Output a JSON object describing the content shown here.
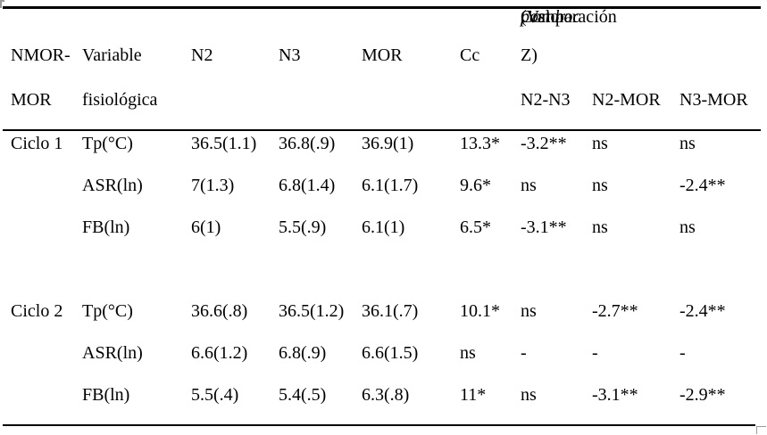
{
  "colors": {
    "text": "#000000",
    "background": "#ffffff",
    "rule": "#000000",
    "handle": "#9a9a9a"
  },
  "table": {
    "header": {
      "group_title_prefix": "Comparación ",
      "group_title_italic": "post hoc",
      "group_title_suffix": " (Valor",
      "group_title_cont": "Z)",
      "col1_line1": "NMOR-",
      "col1_line2": "MOR",
      "col2_line1": "Variable",
      "col2_line2": "fisiológica",
      "col_n2": "N2",
      "col_n3": "N3",
      "col_mor": "MOR",
      "col_cc": "Cc",
      "sub_n2_n3": "N2-N3",
      "sub_n2_mor": "N2-MOR",
      "sub_n3_mor": "N3-MOR"
    },
    "rows": [
      {
        "cycle": "Ciclo 1",
        "variable": "Tp(°C)",
        "n2": "36.5(1.1)",
        "n3": "36.8(.9)",
        "mor": "36.9(1)",
        "cc": "13.3*",
        "n2_n3": "-3.2**",
        "n2_mor": "ns",
        "n3_mor": "ns"
      },
      {
        "cycle": "",
        "variable": "ASR(ln)",
        "n2": "7(1.3)",
        "n3": "6.8(1.4)",
        "mor": "6.1(1.7)",
        "cc": "9.6*",
        "n2_n3": "ns",
        "n2_mor": "ns",
        "n3_mor": "-2.4**"
      },
      {
        "cycle": "",
        "variable": "FB(ln)",
        "n2": "6(1)",
        "n3": "5.5(.9)",
        "mor": "6.1(1)",
        "cc": "6.5*",
        "n2_n3": "-3.1**",
        "n2_mor": "ns",
        "n3_mor": "ns"
      },
      {
        "cycle": "Ciclo 2",
        "variable": "Tp(°C)",
        "n2": "36.6(.8)",
        "n3": "36.5(1.2)",
        "mor": "36.1(.7)",
        "cc": "10.1*",
        "n2_n3": "ns",
        "n2_mor": "-2.7**",
        "n3_mor": "-2.4**"
      },
      {
        "cycle": "",
        "variable": "ASR(ln)",
        "n2": "6.6(1.2)",
        "n3": "6.8(.9)",
        "mor": "6.6(1.5)",
        "cc": "ns",
        "n2_n3": "-",
        "n2_mor": "-",
        "n3_mor": "-"
      },
      {
        "cycle": "",
        "variable": "FB(ln)",
        "n2": "5.5(.4)",
        "n3": "5.4(.5)",
        "mor": "6.3(.8)",
        "cc": "11*",
        "n2_n3": "ns",
        "n2_mor": "-3.1**",
        "n3_mor": "-2.9**"
      }
    ]
  }
}
